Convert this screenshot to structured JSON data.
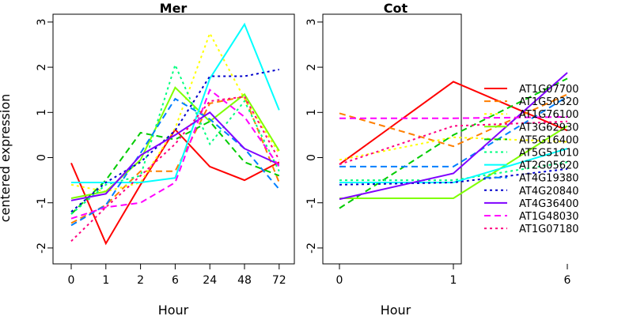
{
  "chart_data": [
    {
      "type": "line",
      "title": "Mer",
      "xlabel": "Hour",
      "ylabel": "centered expression",
      "categories": [
        "0",
        "1",
        "2",
        "6",
        "24",
        "48",
        "72"
      ],
      "ylim": [
        -2,
        3
      ],
      "yticks": [
        -2,
        -1,
        0,
        1,
        2,
        3
      ],
      "series": [
        {
          "name": "AT1G07700",
          "color": "#ff0000",
          "dash": "solid",
          "values": [
            -0.12,
            -1.9,
            -0.6,
            0.62,
            -0.2,
            -0.5,
            -0.1
          ]
        },
        {
          "name": "AT1G50320",
          "color": "#ff7f00",
          "dash": "dashed",
          "values": [
            -1.45,
            -1.05,
            -0.3,
            -0.3,
            1.2,
            1.35,
            -0.55
          ]
        },
        {
          "name": "AT1G76100",
          "color": "#ffff00",
          "dash": "dotted",
          "values": [
            -0.6,
            -0.75,
            -0.55,
            0.65,
            2.75,
            1.3,
            0.1
          ]
        },
        {
          "name": "AT3G62930",
          "color": "#7fff00",
          "dash": "solid",
          "values": [
            -0.9,
            -0.75,
            -0.05,
            1.55,
            0.8,
            1.4,
            0.15
          ]
        },
        {
          "name": "AT5G16400",
          "color": "#00cc00",
          "dash": "dashed",
          "values": [
            -1.25,
            -0.5,
            0.55,
            0.4,
            0.8,
            -0.1,
            -0.4
          ]
        },
        {
          "name": "AT5G51010",
          "color": "#00ff7f",
          "dash": "dotted",
          "values": [
            -1.25,
            -0.6,
            -0.4,
            2.05,
            0.3,
            1.25,
            -0.3
          ]
        },
        {
          "name": "AT2G05620",
          "color": "#00ffff",
          "dash": "solid",
          "values": [
            -0.55,
            -0.55,
            -0.55,
            -0.45,
            1.75,
            2.95,
            1.05
          ]
        },
        {
          "name": "AT4G19380",
          "color": "#007fff",
          "dash": "dashed",
          "values": [
            -1.5,
            -1.05,
            0.1,
            1.3,
            0.85,
            0.2,
            -0.7
          ]
        },
        {
          "name": "AT4G20840",
          "color": "#0000cc",
          "dash": "dotted",
          "values": [
            -1.2,
            -0.55,
            -0.1,
            0.6,
            1.8,
            1.8,
            1.95
          ]
        },
        {
          "name": "AT4G36400",
          "color": "#7f00ff",
          "dash": "solid",
          "values": [
            -0.95,
            -0.8,
            0.05,
            0.5,
            1.0,
            0.2,
            -0.15
          ]
        },
        {
          "name": "AT1G48030",
          "color": "#ff00ff",
          "dash": "dashed",
          "values": [
            -1.35,
            -1.1,
            -1.0,
            -0.55,
            1.5,
            0.9,
            -0.2
          ]
        },
        {
          "name": "AT1G07180",
          "color": "#ff0080",
          "dash": "dotted",
          "values": [
            -1.85,
            -1.1,
            -0.4,
            0.3,
            1.25,
            1.35,
            -0.05
          ]
        }
      ]
    },
    {
      "type": "line",
      "title": "Cot",
      "xlabel": "Hour",
      "ylabel": "",
      "categories": [
        "0",
        "1",
        "6"
      ],
      "ylim": [
        -2,
        3
      ],
      "yticks": [
        -2,
        -1,
        0,
        1,
        2,
        3
      ],
      "series": [
        {
          "name": "AT1G07700",
          "color": "#ff0000",
          "dash": "solid",
          "values": [
            -0.15,
            1.68,
            0.6
          ]
        },
        {
          "name": "AT1G50320",
          "color": "#ff7f00",
          "dash": "dashed",
          "values": [
            0.98,
            0.25,
            1.4
          ]
        },
        {
          "name": "AT1G76100",
          "color": "#ffff00",
          "dash": "dotted",
          "values": [
            -0.05,
            0.45,
            0.35
          ]
        },
        {
          "name": "AT3G62930",
          "color": "#7fff00",
          "dash": "solid",
          "values": [
            -0.9,
            -0.9,
            0.7
          ]
        },
        {
          "name": "AT5G16400",
          "color": "#00cc00",
          "dash": "dashed",
          "values": [
            -1.12,
            0.5,
            1.75
          ]
        },
        {
          "name": "AT5G51010",
          "color": "#00ff7f",
          "dash": "dotted",
          "values": [
            -0.5,
            -0.5,
            -0.1
          ]
        },
        {
          "name": "AT2G05620",
          "color": "#00ffff",
          "dash": "solid",
          "values": [
            -0.55,
            -0.55,
            0.2
          ]
        },
        {
          "name": "AT4G19380",
          "color": "#007fff",
          "dash": "dashed",
          "values": [
            -0.2,
            -0.2,
            1.35
          ]
        },
        {
          "name": "AT4G20840",
          "color": "#0000cc",
          "dash": "dotted",
          "values": [
            -0.6,
            -0.55,
            -0.25
          ]
        },
        {
          "name": "AT4G36400",
          "color": "#7f00ff",
          "dash": "solid",
          "values": [
            -0.92,
            -0.35,
            1.88
          ]
        },
        {
          "name": "AT1G48030",
          "color": "#ff00ff",
          "dash": "dashed",
          "values": [
            0.87,
            0.87,
            0.9
          ]
        },
        {
          "name": "AT1G07180",
          "color": "#ff0080",
          "dash": "dotted",
          "values": [
            -0.15,
            0.7,
            0.8
          ]
        }
      ]
    }
  ]
}
